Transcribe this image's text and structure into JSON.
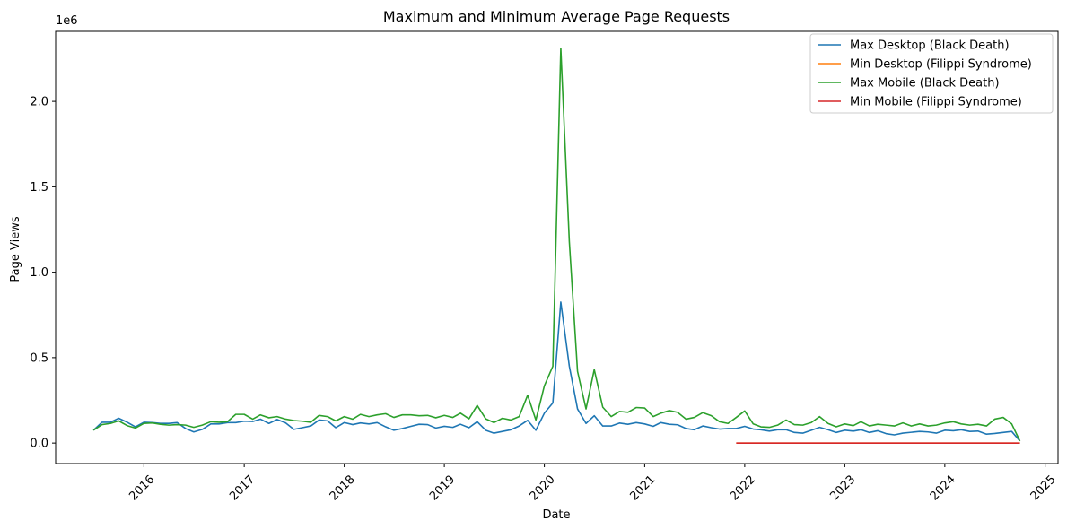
{
  "chart_data": {
    "type": "line",
    "title": "Maximum and Minimum Average Page Requests",
    "xlabel": "Date",
    "ylabel": "Page Views",
    "offset_label": "1e6",
    "x_unit": "date",
    "xlim": [
      "2015-02-13",
      "2025-02-17"
    ],
    "ylim": [
      -120000,
      2410000
    ],
    "x_ticks": [
      {
        "date": "2016-01-01",
        "label": "2016"
      },
      {
        "date": "2017-01-01",
        "label": "2017"
      },
      {
        "date": "2018-01-01",
        "label": "2018"
      },
      {
        "date": "2019-01-01",
        "label": "2019"
      },
      {
        "date": "2020-01-01",
        "label": "2020"
      },
      {
        "date": "2021-01-01",
        "label": "2021"
      },
      {
        "date": "2022-01-01",
        "label": "2022"
      },
      {
        "date": "2023-01-01",
        "label": "2023"
      },
      {
        "date": "2024-01-01",
        "label": "2024"
      },
      {
        "date": "2025-01-01",
        "label": "2025"
      }
    ],
    "y_ticks": [
      {
        "value": 0,
        "label": "0.0"
      },
      {
        "value": 500000,
        "label": "0.5"
      },
      {
        "value": 1000000,
        "label": "1.0"
      },
      {
        "value": 1500000,
        "label": "1.5"
      },
      {
        "value": 2000000,
        "label": "2.0"
      }
    ],
    "legend_position": "top-right",
    "grid": false,
    "series": [
      {
        "name": "Max Desktop (Black Death)",
        "color": "#1f77b4",
        "x": [
          "2015-07-01",
          "2015-08-01",
          "2015-09-01",
          "2015-10-01",
          "2015-11-01",
          "2015-12-01",
          "2016-01-01",
          "2016-02-01",
          "2016-03-01",
          "2016-04-01",
          "2016-05-01",
          "2016-06-01",
          "2016-07-01",
          "2016-08-01",
          "2016-09-01",
          "2016-10-01",
          "2016-11-01",
          "2016-12-01",
          "2017-01-01",
          "2017-02-01",
          "2017-03-01",
          "2017-04-01",
          "2017-05-01",
          "2017-06-01",
          "2017-07-01",
          "2017-08-01",
          "2017-09-01",
          "2017-10-01",
          "2017-11-01",
          "2017-12-01",
          "2018-01-01",
          "2018-02-01",
          "2018-03-01",
          "2018-04-01",
          "2018-05-01",
          "2018-06-01",
          "2018-07-01",
          "2018-08-01",
          "2018-09-01",
          "2018-10-01",
          "2018-11-01",
          "2018-12-01",
          "2019-01-01",
          "2019-02-01",
          "2019-03-01",
          "2019-04-01",
          "2019-05-01",
          "2019-06-01",
          "2019-07-01",
          "2019-08-01",
          "2019-09-01",
          "2019-10-01",
          "2019-11-01",
          "2019-12-01",
          "2020-01-01",
          "2020-02-01",
          "2020-03-01",
          "2020-04-01",
          "2020-05-01",
          "2020-06-01",
          "2020-07-01",
          "2020-08-01",
          "2020-09-01",
          "2020-10-01",
          "2020-11-01",
          "2020-12-01",
          "2021-01-01",
          "2021-02-01",
          "2021-03-01",
          "2021-04-01",
          "2021-05-01",
          "2021-06-01",
          "2021-07-01",
          "2021-08-01",
          "2021-09-01",
          "2021-10-01",
          "2021-11-01",
          "2021-12-01",
          "2022-01-01",
          "2022-02-01",
          "2022-03-01",
          "2022-04-01",
          "2022-05-01",
          "2022-06-01",
          "2022-07-01",
          "2022-08-01",
          "2022-09-01",
          "2022-10-01",
          "2022-11-01",
          "2022-12-01",
          "2023-01-01",
          "2023-02-01",
          "2023-03-01",
          "2023-04-01",
          "2023-05-01",
          "2023-06-01",
          "2023-07-01",
          "2023-08-01",
          "2023-09-01",
          "2023-10-01",
          "2023-11-01",
          "2023-12-01",
          "2024-01-01",
          "2024-02-01",
          "2024-03-01",
          "2024-04-01",
          "2024-05-01",
          "2024-06-01",
          "2024-07-01",
          "2024-08-01",
          "2024-09-01",
          "2024-10-01"
        ],
        "y": [
          75000,
          122000,
          122000,
          145000,
          122000,
          95000,
          122000,
          120000,
          115000,
          115000,
          120000,
          85000,
          65000,
          80000,
          112000,
          112000,
          120000,
          120000,
          128000,
          126000,
          140000,
          115000,
          138000,
          118000,
          80000,
          90000,
          100000,
          135000,
          130000,
          90000,
          120000,
          108000,
          118000,
          112000,
          120000,
          95000,
          75000,
          85000,
          98000,
          110000,
          108000,
          88000,
          98000,
          92000,
          110000,
          90000,
          125000,
          75000,
          58000,
          68000,
          78000,
          100000,
          133000,
          75000,
          175000,
          235000,
          825000,
          450000,
          200000,
          115000,
          160000,
          100000,
          100000,
          117000,
          110000,
          120000,
          112000,
          98000,
          120000,
          110000,
          107000,
          85000,
          78000,
          100000,
          90000,
          82000,
          85000,
          85000,
          98000,
          82000,
          78000,
          70000,
          78000,
          78000,
          62000,
          58000,
          75000,
          92000,
          78000,
          62000,
          75000,
          70000,
          78000,
          62000,
          72000,
          55000,
          48000,
          58000,
          63000,
          68000,
          65000,
          58000,
          75000,
          72000,
          78000,
          68000,
          70000,
          52000,
          56000,
          62000,
          68000,
          12000
        ]
      },
      {
        "name": "Min Desktop (Filippi Syndrome)",
        "color": "#ff7f0e",
        "x": [
          "2021-12-01",
          "2022-06-01",
          "2022-12-01",
          "2023-06-01",
          "2023-12-01",
          "2024-06-01",
          "2024-10-01"
        ],
        "y": [
          0,
          0,
          0,
          0,
          0,
          0,
          0
        ]
      },
      {
        "name": "Max Mobile (Black Death)",
        "color": "#2ca02c",
        "x": [
          "2015-07-01",
          "2015-08-01",
          "2015-09-01",
          "2015-10-01",
          "2015-11-01",
          "2015-12-01",
          "2016-01-01",
          "2016-02-01",
          "2016-03-01",
          "2016-04-01",
          "2016-05-01",
          "2016-06-01",
          "2016-07-01",
          "2016-08-01",
          "2016-09-01",
          "2016-10-01",
          "2016-11-01",
          "2016-12-01",
          "2017-01-01",
          "2017-02-01",
          "2017-03-01",
          "2017-04-01",
          "2017-05-01",
          "2017-06-01",
          "2017-07-01",
          "2017-08-01",
          "2017-09-01",
          "2017-10-01",
          "2017-11-01",
          "2017-12-01",
          "2018-01-01",
          "2018-02-01",
          "2018-03-01",
          "2018-04-01",
          "2018-05-01",
          "2018-06-01",
          "2018-07-01",
          "2018-08-01",
          "2018-09-01",
          "2018-10-01",
          "2018-11-01",
          "2018-12-01",
          "2019-01-01",
          "2019-02-01",
          "2019-03-01",
          "2019-04-01",
          "2019-05-01",
          "2019-06-01",
          "2019-07-01",
          "2019-08-01",
          "2019-09-01",
          "2019-10-01",
          "2019-11-01",
          "2019-12-01",
          "2020-01-01",
          "2020-02-01",
          "2020-03-01",
          "2020-04-01",
          "2020-05-01",
          "2020-06-01",
          "2020-07-01",
          "2020-08-01",
          "2020-09-01",
          "2020-10-01",
          "2020-11-01",
          "2020-12-01",
          "2021-01-01",
          "2021-02-01",
          "2021-03-01",
          "2021-04-01",
          "2021-05-01",
          "2021-06-01",
          "2021-07-01",
          "2021-08-01",
          "2021-09-01",
          "2021-10-01",
          "2021-11-01",
          "2021-12-01",
          "2022-01-01",
          "2022-02-01",
          "2022-03-01",
          "2022-04-01",
          "2022-05-01",
          "2022-06-01",
          "2022-07-01",
          "2022-08-01",
          "2022-09-01",
          "2022-10-01",
          "2022-11-01",
          "2022-12-01",
          "2023-01-01",
          "2023-02-01",
          "2023-03-01",
          "2023-04-01",
          "2023-05-01",
          "2023-06-01",
          "2023-07-01",
          "2023-08-01",
          "2023-09-01",
          "2023-10-01",
          "2023-11-01",
          "2023-12-01",
          "2024-01-01",
          "2024-02-01",
          "2024-03-01",
          "2024-04-01",
          "2024-05-01",
          "2024-06-01",
          "2024-07-01",
          "2024-08-01",
          "2024-09-01",
          "2024-10-01"
        ],
        "y": [
          75000,
          108000,
          115000,
          130000,
          102000,
          88000,
          115000,
          118000,
          110000,
          105000,
          108000,
          105000,
          92000,
          105000,
          125000,
          122000,
          125000,
          168000,
          168000,
          140000,
          165000,
          148000,
          155000,
          140000,
          132000,
          128000,
          122000,
          162000,
          155000,
          130000,
          155000,
          140000,
          168000,
          155000,
          165000,
          172000,
          150000,
          165000,
          165000,
          160000,
          162000,
          148000,
          162000,
          150000,
          175000,
          142000,
          220000,
          142000,
          120000,
          145000,
          135000,
          155000,
          280000,
          135000,
          335000,
          450000,
          2310000,
          1180000,
          420000,
          200000,
          430000,
          210000,
          155000,
          185000,
          180000,
          208000,
          205000,
          155000,
          175000,
          190000,
          180000,
          140000,
          150000,
          178000,
          160000,
          125000,
          115000,
          150000,
          188000,
          112000,
          95000,
          92000,
          105000,
          135000,
          108000,
          105000,
          120000,
          155000,
          115000,
          95000,
          112000,
          102000,
          125000,
          100000,
          110000,
          105000,
          100000,
          118000,
          100000,
          112000,
          100000,
          105000,
          118000,
          125000,
          112000,
          105000,
          110000,
          100000,
          140000,
          150000,
          112000,
          12000
        ]
      },
      {
        "name": "Min Mobile (Filippi Syndrome)",
        "color": "#d62728",
        "x": [
          "2021-12-01",
          "2022-06-01",
          "2022-12-01",
          "2023-06-01",
          "2023-12-01",
          "2024-06-01",
          "2024-10-01"
        ],
        "y": [
          0,
          0,
          0,
          0,
          0,
          0,
          0
        ]
      }
    ]
  }
}
